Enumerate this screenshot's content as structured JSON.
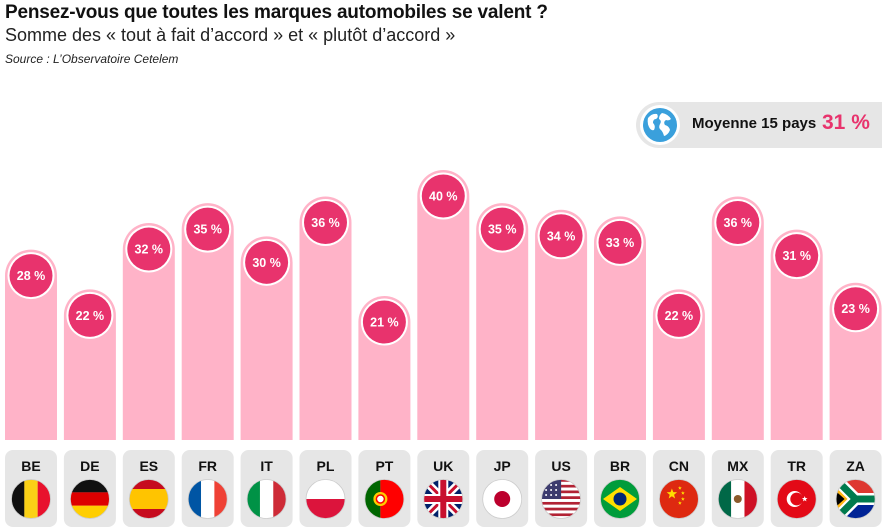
{
  "header": {
    "title": "Pensez-vous que toutes les marques automobiles se valent ?",
    "subtitle": "Somme des « tout à fait d’accord » et « plutôt d’accord »",
    "source": "Source : L’Observatoire Cetelem"
  },
  "average": {
    "icon": "globe-icon",
    "label": "Moyenne 15 pays",
    "value": "31 %"
  },
  "colors": {
    "bar": "#ffb3c8",
    "badge": "#e8336d",
    "badge_border": "#ffffff",
    "label_bg": "#e6e6e6",
    "accent_text": "#e8336d"
  },
  "chart_data": {
    "type": "bar",
    "title": "Pensez-vous que toutes les marques automobiles se valent ?",
    "subtitle": "Somme des « tout à fait d’accord » et « plutôt d’accord »",
    "categories": [
      "BE",
      "DE",
      "ES",
      "FR",
      "IT",
      "PL",
      "PT",
      "UK",
      "JP",
      "US",
      "BR",
      "CN",
      "MX",
      "TR",
      "ZA"
    ],
    "values": [
      28,
      22,
      32,
      35,
      30,
      36,
      21,
      40,
      35,
      34,
      33,
      22,
      36,
      31,
      23
    ],
    "value_labels": [
      "28 %",
      "22 %",
      "32 %",
      "35 %",
      "30 %",
      "36 %",
      "21 %",
      "40 %",
      "35 %",
      "34 %",
      "33 %",
      "22 %",
      "36 %",
      "31 %",
      "23 %"
    ],
    "unit": "%",
    "flags": [
      "flag-be-icon",
      "flag-de-icon",
      "flag-es-icon",
      "flag-fr-icon",
      "flag-it-icon",
      "flag-pl-icon",
      "flag-pt-icon",
      "flag-uk-icon",
      "flag-jp-icon",
      "flag-us-icon",
      "flag-br-icon",
      "flag-cn-icon",
      "flag-mx-icon",
      "flag-tr-icon",
      "flag-za-icon"
    ],
    "ylim": [
      0,
      40
    ],
    "grid": false,
    "legend": "none"
  }
}
